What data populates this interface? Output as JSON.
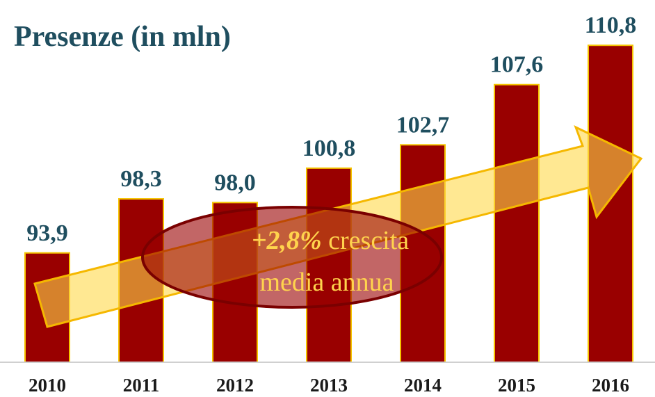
{
  "chart_data": {
    "type": "bar",
    "title": "Presenze (in mln)",
    "categories": [
      "2010",
      "2011",
      "2012",
      "2013",
      "2014",
      "2015",
      "2016"
    ],
    "values": [
      93.9,
      98.3,
      98.0,
      100.8,
      102.7,
      107.6,
      110.8
    ],
    "value_labels": [
      "93,9",
      "98,3",
      "98,0",
      "100,8",
      "102,7",
      "107,6",
      "110,8"
    ],
    "color": "#990000",
    "ylim": [
      85,
      112
    ],
    "annotation": {
      "highlight": "+2,8%",
      "text": [
        "crescita",
        "media annua"
      ]
    }
  }
}
